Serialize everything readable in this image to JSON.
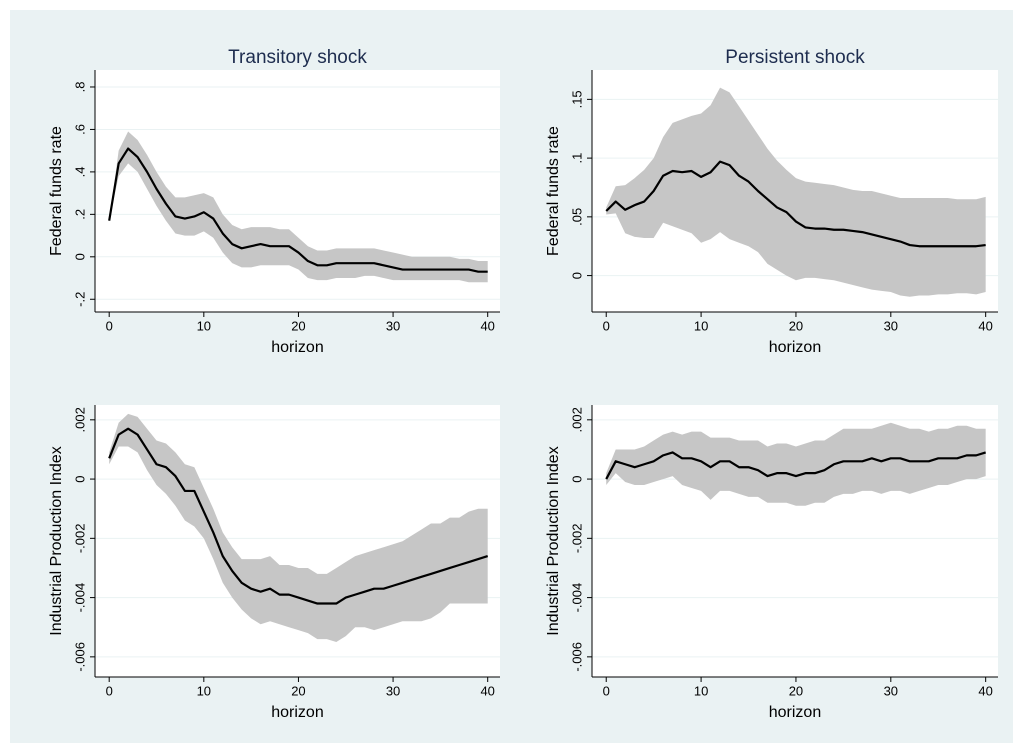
{
  "chart_data": [
    {
      "type": "line",
      "title": "Transitory shock",
      "xlabel": "horizon",
      "ylabel": "Federal funds rate",
      "x": [
        0,
        1,
        2,
        3,
        4,
        5,
        6,
        7,
        8,
        9,
        10,
        11,
        12,
        13,
        14,
        15,
        16,
        17,
        18,
        19,
        20,
        21,
        22,
        23,
        24,
        25,
        26,
        27,
        28,
        29,
        30,
        31,
        32,
        33,
        34,
        35,
        36,
        37,
        38,
        39,
        40
      ],
      "xlim": [
        -1.5,
        41.3
      ],
      "xticks": [
        0,
        10,
        20,
        30,
        40
      ],
      "ylim": [
        -0.26,
        0.88
      ],
      "yticks": [
        {
          "value": -0.2,
          "label": "-.2"
        },
        0,
        {
          "value": 0.2,
          "label": ".2"
        },
        {
          "value": 0.4,
          "label": ".4"
        },
        {
          "value": 0.6,
          "label": ".6"
        },
        {
          "value": 0.8,
          "label": ".8"
        }
      ],
      "grid": true,
      "series": [
        {
          "color": "#000000",
          "values": [
            0.17,
            0.44,
            0.51,
            0.47,
            0.4,
            0.32,
            0.25,
            0.19,
            0.18,
            0.19,
            0.21,
            0.18,
            0.11,
            0.06,
            0.04,
            0.05,
            0.06,
            0.05,
            0.05,
            0.05,
            0.02,
            -0.02,
            -0.04,
            -0.04,
            -0.03,
            -0.03,
            -0.03,
            -0.03,
            -0.03,
            -0.04,
            -0.05,
            -0.06,
            -0.06,
            -0.06,
            -0.06,
            -0.06,
            -0.06,
            -0.06,
            -0.06,
            -0.07,
            -0.07
          ]
        }
      ],
      "band": {
        "color": "#c6c6c6",
        "upper": [
          0.17,
          0.5,
          0.59,
          0.55,
          0.48,
          0.4,
          0.33,
          0.28,
          0.28,
          0.29,
          0.3,
          0.28,
          0.2,
          0.15,
          0.13,
          0.14,
          0.14,
          0.14,
          0.13,
          0.13,
          0.09,
          0.05,
          0.03,
          0.03,
          0.04,
          0.04,
          0.04,
          0.04,
          0.04,
          0.03,
          0.02,
          0.01,
          0.0,
          0.0,
          0.0,
          0.0,
          0.0,
          -0.01,
          -0.01,
          -0.02,
          -0.02
        ],
        "lower": [
          0.17,
          0.38,
          0.44,
          0.4,
          0.32,
          0.24,
          0.17,
          0.11,
          0.1,
          0.1,
          0.12,
          0.09,
          0.02,
          -0.03,
          -0.05,
          -0.05,
          -0.04,
          -0.04,
          -0.04,
          -0.04,
          -0.06,
          -0.1,
          -0.11,
          -0.11,
          -0.1,
          -0.1,
          -0.1,
          -0.09,
          -0.09,
          -0.1,
          -0.11,
          -0.11,
          -0.11,
          -0.11,
          -0.11,
          -0.11,
          -0.11,
          -0.11,
          -0.12,
          -0.12,
          -0.12
        ]
      }
    },
    {
      "type": "line",
      "title": "Persistent shock",
      "xlabel": "horizon",
      "ylabel": "Federal funds rate",
      "x": [
        0,
        1,
        2,
        3,
        4,
        5,
        6,
        7,
        8,
        9,
        10,
        11,
        12,
        13,
        14,
        15,
        16,
        17,
        18,
        19,
        20,
        21,
        22,
        23,
        24,
        25,
        26,
        27,
        28,
        29,
        30,
        31,
        32,
        33,
        34,
        35,
        36,
        37,
        38,
        39,
        40
      ],
      "xlim": [
        -1.5,
        41.3
      ],
      "xticks": [
        0,
        10,
        20,
        30,
        40
      ],
      "ylim": [
        -0.031,
        0.175
      ],
      "yticks": [
        0,
        {
          "value": 0.05,
          "label": ".05"
        },
        {
          "value": 0.1,
          "label": ".1"
        },
        {
          "value": 0.15,
          "label": ".15"
        }
      ],
      "grid": true,
      "series": [
        {
          "color": "#000000",
          "values": [
            0.055,
            0.063,
            0.056,
            0.06,
            0.063,
            0.072,
            0.085,
            0.089,
            0.088,
            0.089,
            0.084,
            0.088,
            0.097,
            0.094,
            0.085,
            0.08,
            0.072,
            0.065,
            0.058,
            0.054,
            0.046,
            0.041,
            0.04,
            0.04,
            0.039,
            0.039,
            0.038,
            0.037,
            0.035,
            0.033,
            0.031,
            0.029,
            0.026,
            0.025,
            0.025,
            0.025,
            0.025,
            0.025,
            0.025,
            0.025,
            0.026
          ]
        }
      ],
      "band": {
        "color": "#c6c6c6",
        "upper": [
          0.058,
          0.076,
          0.077,
          0.083,
          0.09,
          0.1,
          0.118,
          0.13,
          0.133,
          0.136,
          0.138,
          0.145,
          0.16,
          0.156,
          0.144,
          0.132,
          0.12,
          0.108,
          0.098,
          0.09,
          0.083,
          0.08,
          0.079,
          0.078,
          0.077,
          0.075,
          0.073,
          0.072,
          0.072,
          0.07,
          0.068,
          0.066,
          0.066,
          0.066,
          0.066,
          0.066,
          0.066,
          0.065,
          0.065,
          0.065,
          0.067
        ],
        "lower": [
          0.052,
          0.053,
          0.036,
          0.033,
          0.032,
          0.032,
          0.045,
          0.042,
          0.039,
          0.036,
          0.028,
          0.031,
          0.037,
          0.031,
          0.028,
          0.025,
          0.02,
          0.01,
          0.005,
          0.0,
          -0.004,
          -0.002,
          -0.002,
          -0.003,
          -0.004,
          -0.006,
          -0.008,
          -0.01,
          -0.012,
          -0.013,
          -0.014,
          -0.017,
          -0.018,
          -0.017,
          -0.017,
          -0.016,
          -0.016,
          -0.015,
          -0.015,
          -0.016,
          -0.014
        ]
      }
    },
    {
      "type": "line",
      "xlabel": "horizon",
      "ylabel": "Industrial Production Index",
      "x": [
        0,
        1,
        2,
        3,
        4,
        5,
        6,
        7,
        8,
        9,
        10,
        11,
        12,
        13,
        14,
        15,
        16,
        17,
        18,
        19,
        20,
        21,
        22,
        23,
        24,
        25,
        26,
        27,
        28,
        29,
        30,
        31,
        32,
        33,
        34,
        35,
        36,
        37,
        38,
        39,
        40
      ],
      "xlim": [
        -1.5,
        41.3
      ],
      "xticks": [
        0,
        10,
        20,
        30,
        40
      ],
      "ylim": [
        -0.00668,
        0.0025
      ],
      "yticks": [
        {
          "value": -0.006,
          "label": "-.006"
        },
        {
          "value": -0.004,
          "label": "-.004"
        },
        {
          "value": -0.002,
          "label": "-.002"
        },
        0,
        {
          "value": 0.002,
          "label": ".002"
        }
      ],
      "grid": true,
      "series": [
        {
          "color": "#000000",
          "values": [
            0.0007,
            0.0015,
            0.0017,
            0.0015,
            0.001,
            0.0005,
            0.0004,
            0.0001,
            -0.0004,
            -0.0004,
            -0.0011,
            -0.0018,
            -0.0026,
            -0.0031,
            -0.0035,
            -0.0037,
            -0.0038,
            -0.0037,
            -0.0039,
            -0.0039,
            -0.004,
            -0.0041,
            -0.0042,
            -0.0042,
            -0.0042,
            -0.004,
            -0.0039,
            -0.0038,
            -0.0037,
            -0.0037,
            -0.0036,
            -0.0035,
            -0.0034,
            -0.0033,
            -0.0032,
            -0.0031,
            -0.003,
            -0.0029,
            -0.0028,
            -0.0027,
            -0.0026
          ]
        }
      ],
      "band": {
        "color": "#c6c6c6",
        "upper": [
          0.0009,
          0.0019,
          0.0022,
          0.0021,
          0.0017,
          0.0013,
          0.0012,
          0.0009,
          0.0005,
          0.0004,
          -0.0003,
          -0.001,
          -0.0018,
          -0.0023,
          -0.0027,
          -0.0027,
          -0.0027,
          -0.0026,
          -0.0029,
          -0.0029,
          -0.003,
          -0.003,
          -0.0032,
          -0.0032,
          -0.003,
          -0.0028,
          -0.0026,
          -0.0025,
          -0.0024,
          -0.0023,
          -0.0022,
          -0.0021,
          -0.0019,
          -0.0017,
          -0.0015,
          -0.0015,
          -0.0013,
          -0.0013,
          -0.0011,
          -0.001,
          -0.001
        ],
        "lower": [
          0.0005,
          0.0011,
          0.0011,
          0.0009,
          0.0003,
          -0.0002,
          -0.0005,
          -0.0009,
          -0.0014,
          -0.0016,
          -0.002,
          -0.0027,
          -0.0035,
          -0.004,
          -0.0044,
          -0.0047,
          -0.0049,
          -0.0048,
          -0.0049,
          -0.005,
          -0.0051,
          -0.0052,
          -0.0054,
          -0.0054,
          -0.0055,
          -0.0053,
          -0.005,
          -0.005,
          -0.0051,
          -0.005,
          -0.0049,
          -0.0048,
          -0.0048,
          -0.0048,
          -0.0047,
          -0.0045,
          -0.0042,
          -0.0042,
          -0.0042,
          -0.0042,
          -0.0042
        ]
      }
    },
    {
      "type": "line",
      "xlabel": "horizon",
      "ylabel": "Industrial Production Index",
      "x": [
        0,
        1,
        2,
        3,
        4,
        5,
        6,
        7,
        8,
        9,
        10,
        11,
        12,
        13,
        14,
        15,
        16,
        17,
        18,
        19,
        20,
        21,
        22,
        23,
        24,
        25,
        26,
        27,
        28,
        29,
        30,
        31,
        32,
        33,
        34,
        35,
        36,
        37,
        38,
        39,
        40
      ],
      "xlim": [
        -1.5,
        41.3
      ],
      "xticks": [
        0,
        10,
        20,
        30,
        40
      ],
      "ylim": [
        -0.00668,
        0.0025
      ],
      "yticks": [
        {
          "value": -0.006,
          "label": "-.006"
        },
        {
          "value": -0.004,
          "label": "-.004"
        },
        {
          "value": -0.002,
          "label": "-.002"
        },
        0,
        {
          "value": 0.002,
          "label": ".002"
        }
      ],
      "grid": true,
      "series": [
        {
          "color": "#000000",
          "values": [
            0,
            0.0006,
            0.0005,
            0.0004,
            0.0005,
            0.0006,
            0.0008,
            0.0009,
            0.0007,
            0.0007,
            0.0006,
            0.0004,
            0.0006,
            0.0006,
            0.0004,
            0.0004,
            0.0003,
            0.0001,
            0.0002,
            0.0002,
            0.0001,
            0.0002,
            0.0002,
            0.0003,
            0.0005,
            0.0006,
            0.0006,
            0.0006,
            0.0007,
            0.0006,
            0.0007,
            0.0007,
            0.0006,
            0.0006,
            0.0006,
            0.0007,
            0.0007,
            0.0007,
            0.0008,
            0.0008,
            0.0009
          ]
        }
      ],
      "band": {
        "color": "#c6c6c6",
        "upper": [
          0.0002,
          0.001,
          0.001,
          0.001,
          0.0011,
          0.0013,
          0.0015,
          0.0016,
          0.0015,
          0.0016,
          0.0016,
          0.0014,
          0.0014,
          0.0014,
          0.0013,
          0.0013,
          0.0013,
          0.0011,
          0.0012,
          0.0012,
          0.0011,
          0.0012,
          0.0013,
          0.0013,
          0.0015,
          0.0017,
          0.0017,
          0.0017,
          0.0017,
          0.0018,
          0.0019,
          0.0018,
          0.0017,
          0.0017,
          0.0016,
          0.0017,
          0.0017,
          0.0018,
          0.0018,
          0.0017,
          0.0017
        ],
        "lower": [
          -0.0002,
          0.0002,
          -0.0001,
          -0.0002,
          -0.0002,
          -0.0001,
          0,
          0.0001,
          -0.0002,
          -0.0003,
          -0.0004,
          -0.0007,
          -0.0004,
          -0.0004,
          -0.0005,
          -0.0006,
          -0.0006,
          -0.0008,
          -0.0008,
          -0.0008,
          -0.0009,
          -0.0009,
          -0.0008,
          -0.0008,
          -0.0006,
          -0.0005,
          -0.0005,
          -0.0004,
          -0.0004,
          -0.0005,
          -0.0004,
          -0.0004,
          -0.0005,
          -0.0004,
          -0.0003,
          -0.0002,
          -0.0002,
          -0.0001,
          0,
          0,
          0.0001
        ]
      }
    }
  ]
}
